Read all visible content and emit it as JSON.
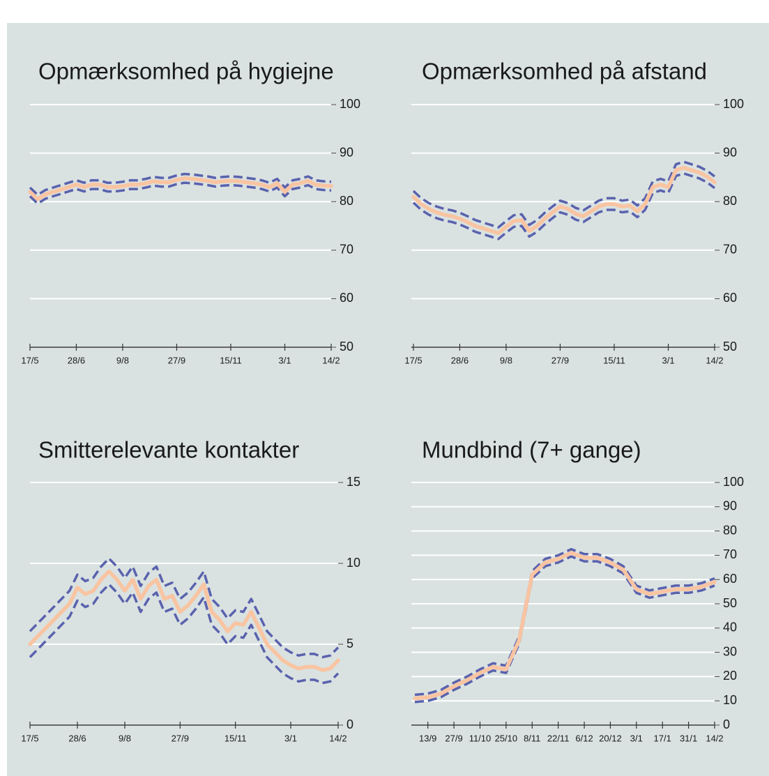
{
  "chart_data": [
    {
      "type": "line",
      "title": "Opmærksomhed på hygiejne",
      "categories": [
        "17/5",
        null,
        null,
        null,
        null,
        null,
        "28/6",
        null,
        null,
        null,
        null,
        null,
        "9/8",
        null,
        null,
        null,
        null,
        null,
        null,
        "27/9",
        null,
        null,
        null,
        null,
        null,
        null,
        "15/11",
        null,
        null,
        null,
        null,
        null,
        null,
        "3/1",
        null,
        null,
        null,
        null,
        null,
        "14/2"
      ],
      "series": [
        {
          "color": "#5a62ad",
          "dashed": true,
          "values": [
            82.9,
            81.4,
            82.4,
            82.9,
            83.4,
            83.9,
            84.4,
            83.9,
            84.4,
            84.4,
            83.9,
            83.9,
            84.1,
            84.4,
            84.4,
            84.7,
            85.1,
            84.9,
            84.9,
            85.4,
            85.7,
            85.6,
            85.4,
            85.2,
            84.9,
            85.1,
            85.2,
            85.1,
            84.9,
            84.7,
            84.4,
            83.9,
            84.7,
            82.9,
            84.4,
            84.7,
            85.2,
            84.4,
            84.2,
            84.1
          ]
        },
        {
          "color": "#5a62ad",
          "dashed": true,
          "values": [
            81.1,
            79.6,
            80.6,
            81.1,
            81.6,
            82.1,
            82.6,
            82.1,
            82.6,
            82.6,
            82.1,
            82.1,
            82.3,
            82.6,
            82.6,
            82.9,
            83.3,
            83.1,
            83.1,
            83.6,
            83.9,
            83.8,
            83.6,
            83.4,
            83.1,
            83.3,
            83.4,
            83.3,
            83.1,
            82.9,
            82.6,
            82.1,
            82.9,
            81.1,
            82.6,
            82.9,
            83.4,
            82.6,
            82.4,
            82.3
          ]
        },
        {
          "color": "#f9c4a2",
          "dashed": false,
          "values": [
            82,
            80.5,
            81.5,
            82,
            82.5,
            83,
            83.5,
            83,
            83.5,
            83.5,
            83,
            83,
            83.2,
            83.5,
            83.5,
            83.8,
            84.2,
            84,
            84,
            84.5,
            84.8,
            84.7,
            84.5,
            84.3,
            84,
            84.2,
            84.3,
            84.2,
            84,
            83.8,
            83.5,
            83,
            83.8,
            82,
            83.5,
            83.8,
            84.3,
            83.5,
            83.3,
            83.2
          ]
        }
      ],
      "ylim": [
        50,
        100
      ],
      "yticks": [
        50,
        60,
        70,
        80,
        90,
        100
      ],
      "grid": true
    },
    {
      "type": "line",
      "title": "Opmærksomhed på afstand",
      "categories": [
        "17/5",
        null,
        null,
        null,
        null,
        null,
        "28/6",
        null,
        null,
        null,
        null,
        null,
        "9/8",
        null,
        null,
        null,
        null,
        null,
        null,
        "27/9",
        null,
        null,
        null,
        null,
        null,
        null,
        "15/11",
        null,
        null,
        null,
        null,
        null,
        null,
        "3/1",
        null,
        null,
        null,
        null,
        null,
        "14/2"
      ],
      "series": [
        {
          "color": "#5a62ad",
          "dashed": true,
          "values": [
            82.2,
            80.7,
            79.7,
            79,
            78.5,
            78.2,
            77.7,
            77,
            76.2,
            75.7,
            75.2,
            74.7,
            76,
            77.2,
            77.4,
            75.2,
            76.2,
            77.7,
            79,
            80.2,
            79.7,
            78.7,
            78.2,
            79.2,
            80.2,
            80.7,
            80.7,
            80.2,
            80.4,
            79.2,
            80.7,
            84.2,
            84.7,
            84.2,
            87.7,
            88.2,
            87.7,
            87.2,
            86.4,
            85.2
          ]
        },
        {
          "color": "#5a62ad",
          "dashed": true,
          "values": [
            79.8,
            78.3,
            77.3,
            76.6,
            76.1,
            75.8,
            75.3,
            74.6,
            73.8,
            73.3,
            72.8,
            72.3,
            73.6,
            74.8,
            75,
            72.8,
            73.8,
            75.3,
            76.6,
            77.8,
            77.3,
            76.3,
            75.8,
            76.8,
            77.8,
            78.3,
            78.3,
            77.8,
            78,
            76.8,
            78.3,
            81.8,
            82.3,
            81.8,
            85.3,
            85.8,
            85.3,
            84.8,
            84,
            82.8
          ]
        },
        {
          "color": "#f9c4a2",
          "dashed": false,
          "values": [
            81,
            79.5,
            78.5,
            77.8,
            77.3,
            77,
            76.5,
            75.8,
            75,
            74.5,
            74,
            73.5,
            74.8,
            76,
            76.2,
            74,
            75,
            76.5,
            77.8,
            79,
            78.5,
            77.5,
            77,
            78,
            79,
            79.5,
            79.5,
            79,
            79.2,
            78,
            79.5,
            83,
            83.5,
            83,
            86.5,
            87,
            86.5,
            86,
            85.2,
            84
          ]
        }
      ],
      "ylim": [
        50,
        100
      ],
      "yticks": [
        50,
        60,
        70,
        80,
        90,
        100
      ],
      "grid": true
    },
    {
      "type": "line",
      "title": "Smitterelevante kontakter",
      "categories": [
        "17/5",
        null,
        null,
        null,
        null,
        null,
        "28/6",
        null,
        null,
        null,
        null,
        null,
        "9/8",
        null,
        null,
        null,
        null,
        null,
        null,
        "27/9",
        null,
        null,
        null,
        null,
        null,
        null,
        "15/11",
        null,
        null,
        null,
        null,
        null,
        null,
        "3/1",
        null,
        null,
        null,
        null,
        null,
        "14/2"
      ],
      "series": [
        {
          "color": "#5a62ad",
          "dashed": true,
          "values": [
            5.8,
            6.3,
            6.8,
            7.3,
            7.8,
            8.3,
            9.3,
            8.9,
            9.1,
            9.8,
            10.3,
            9.8,
            9.1,
            9.8,
            8.6,
            9.4,
            9.8,
            8.6,
            8.8,
            7.8,
            8.2,
            8.8,
            9.5,
            7.8,
            7.3,
            6.6,
            7.1,
            7,
            7.8,
            6.8,
            5.8,
            5.3,
            4.8,
            4.5,
            4.3,
            4.4,
            4.4,
            4.2,
            4.3,
            4.8
          ]
        },
        {
          "color": "#5a62ad",
          "dashed": true,
          "values": [
            4.2,
            4.7,
            5.2,
            5.7,
            6.2,
            6.7,
            7.7,
            7.3,
            7.5,
            8.2,
            8.7,
            8.2,
            7.5,
            8.2,
            7,
            7.8,
            8.2,
            7,
            7.2,
            6.2,
            6.6,
            7.2,
            7.9,
            6.2,
            5.7,
            5,
            5.5,
            5.4,
            6.2,
            5.2,
            4.2,
            3.7,
            3.2,
            2.9,
            2.7,
            2.8,
            2.8,
            2.6,
            2.7,
            3.2
          ]
        },
        {
          "color": "#f9c4a2",
          "dashed": false,
          "values": [
            5,
            5.5,
            6,
            6.5,
            7,
            7.5,
            8.5,
            8.1,
            8.3,
            9,
            9.5,
            9,
            8.3,
            9,
            7.8,
            8.6,
            9,
            7.8,
            8,
            7,
            7.4,
            8,
            8.7,
            7,
            6.5,
            5.8,
            6.3,
            6.2,
            7,
            6,
            5,
            4.5,
            4,
            3.7,
            3.5,
            3.6,
            3.6,
            3.4,
            3.5,
            4
          ]
        }
      ],
      "ylim": [
        0,
        15
      ],
      "yticks": [
        0,
        5,
        10,
        15
      ],
      "grid": true
    },
    {
      "type": "line",
      "title": "Mundbind (7+ gange)",
      "categories": [
        null,
        "13/9",
        null,
        "27/9",
        null,
        "11/10",
        null,
        "25/10",
        null,
        "8/11",
        null,
        "22/11",
        null,
        "6/12",
        null,
        "20/12",
        null,
        "3/1",
        null,
        "17/1",
        null,
        "31/1",
        null,
        "14/2"
      ],
      "series": [
        {
          "color": "#5a62ad",
          "dashed": true,
          "values": [
            12.5,
            13,
            14.5,
            17.5,
            20,
            23,
            25.5,
            24.5,
            36.5,
            63.5,
            68.5,
            70,
            72.5,
            70.5,
            70.5,
            68.5,
            65.5,
            57.5,
            55.5,
            56.5,
            57.5,
            57.5,
            58.5,
            60.5
          ]
        },
        {
          "color": "#5a62ad",
          "dashed": true,
          "values": [
            9.5,
            10,
            11.5,
            14.5,
            17,
            20,
            22.5,
            21.5,
            33.5,
            60.5,
            65.5,
            67,
            69.5,
            67.5,
            67.5,
            65.5,
            62.5,
            54.5,
            52.5,
            53.5,
            54.5,
            54.5,
            55.5,
            57.5
          ]
        },
        {
          "color": "#f9c4a2",
          "dashed": false,
          "values": [
            11,
            11.5,
            13,
            16,
            18.5,
            21.5,
            24,
            23,
            35,
            62,
            67,
            68.5,
            71,
            69,
            69,
            67,
            64,
            56,
            54,
            55,
            56,
            56,
            57,
            59
          ]
        }
      ],
      "ylim": [
        0,
        100
      ],
      "yticks": [
        0,
        10,
        20,
        30,
        40,
        50,
        60,
        70,
        80,
        90,
        100
      ],
      "grid": true
    }
  ]
}
